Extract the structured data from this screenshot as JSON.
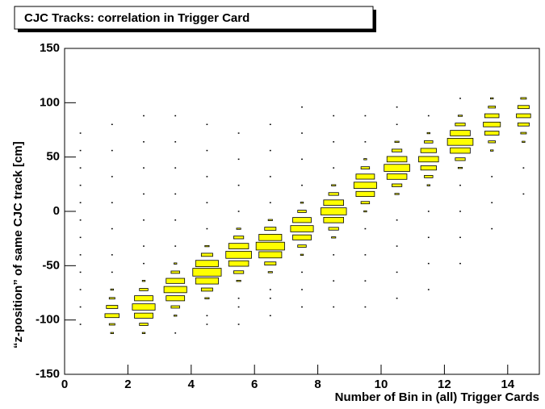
{
  "chart_data": {
    "type": "box",
    "title": "CJC Tracks: correlation in Trigger Card",
    "x_label": "Number of Bin in (all) Trigger Cards",
    "y_label": "“z-position” of same CJC track [cm]",
    "xlim": [
      0,
      15
    ],
    "ylim": [
      -150,
      150
    ],
    "xticks": [
      0,
      2,
      4,
      6,
      8,
      10,
      12,
      14
    ],
    "yticks": [
      -150,
      -100,
      -50,
      0,
      50,
      100,
      150
    ],
    "color": "#ffff00",
    "x": [
      0.5,
      0.5,
      0.5,
      0.5,
      0.5,
      0.5,
      0.5,
      0.5,
      0.5,
      0.5,
      0.5,
      0.5,
      1.5,
      1.5,
      1.5,
      1.5,
      1.5,
      1.5,
      1.5,
      1.5,
      1.5,
      1.5,
      1.5,
      1.5,
      1.5,
      2.5,
      2.5,
      2.5,
      2.5,
      2.5,
      2.5,
      2.5,
      2.5,
      2.5,
      2.5,
      2.5,
      2.5,
      2.5,
      2.5,
      3.5,
      3.5,
      3.5,
      3.5,
      3.5,
      3.5,
      3.5,
      3.5,
      3.5,
      3.5,
      3.5,
      3.5,
      3.5,
      3.5,
      4.5,
      4.5,
      4.5,
      4.5,
      4.5,
      4.5,
      4.5,
      4.5,
      4.5,
      4.5,
      4.5,
      4.5,
      4.5,
      4.5,
      5.5,
      5.5,
      5.5,
      5.5,
      5.5,
      5.5,
      5.5,
      5.5,
      5.5,
      5.5,
      5.5,
      5.5,
      5.5,
      5.5,
      6.5,
      6.5,
      6.5,
      6.5,
      6.5,
      6.5,
      6.5,
      6.5,
      6.5,
      6.5,
      6.5,
      6.5,
      6.5,
      6.5,
      7.5,
      7.5,
      7.5,
      7.5,
      7.5,
      7.5,
      7.5,
      7.5,
      7.5,
      7.5,
      7.5,
      7.5,
      7.5,
      7.5,
      8.5,
      8.5,
      8.5,
      8.5,
      8.5,
      8.5,
      8.5,
      8.5,
      8.5,
      8.5,
      8.5,
      8.5,
      8.5,
      9.5,
      9.5,
      9.5,
      9.5,
      9.5,
      9.5,
      9.5,
      9.5,
      9.5,
      9.5,
      9.5,
      9.5,
      9.5,
      10.5,
      10.5,
      10.5,
      10.5,
      10.5,
      10.5,
      10.5,
      10.5,
      10.5,
      10.5,
      10.5,
      10.5,
      10.5,
      11.5,
      11.5,
      11.5,
      11.5,
      11.5,
      11.5,
      11.5,
      11.5,
      11.5,
      11.5,
      11.5,
      11.5,
      12.5,
      12.5,
      12.5,
      12.5,
      12.5,
      12.5,
      12.5,
      12.5,
      12.5,
      12.5,
      12.5,
      12.5,
      13.5,
      13.5,
      13.5,
      13.5,
      13.5,
      13.5,
      13.5,
      13.5,
      13.5,
      13.5,
      14.5,
      14.5,
      14.5,
      14.5,
      14.5,
      14.5,
      14.5,
      14.5
    ],
    "y": [
      -104,
      -88,
      -72,
      -56,
      -40,
      -24,
      -8,
      8,
      24,
      40,
      56,
      72,
      -112,
      -104,
      -96,
      -88,
      -80,
      -72,
      -56,
      -40,
      -16,
      8,
      32,
      56,
      80,
      -112,
      -104,
      -96,
      -88,
      -80,
      -72,
      -64,
      -48,
      -32,
      -8,
      16,
      40,
      64,
      88,
      -96,
      -88,
      -80,
      -72,
      -64,
      -56,
      -48,
      -112,
      -32,
      -8,
      16,
      40,
      64,
      88,
      -80,
      -72,
      -64,
      -56,
      -48,
      -40,
      -32,
      -104,
      -96,
      -16,
      8,
      32,
      56,
      80,
      -64,
      -56,
      -48,
      -40,
      -32,
      -24,
      -16,
      -104,
      -88,
      -80,
      0,
      24,
      48,
      72,
      -56,
      -48,
      -40,
      -32,
      -24,
      -16,
      -8,
      -96,
      -80,
      -72,
      8,
      32,
      56,
      80,
      -40,
      -32,
      -24,
      -16,
      -8,
      0,
      8,
      -88,
      -72,
      -56,
      24,
      48,
      72,
      96,
      -24,
      -16,
      -8,
      0,
      8,
      16,
      24,
      -88,
      -64,
      -40,
      40,
      64,
      88,
      0,
      8,
      16,
      24,
      32,
      40,
      48,
      -88,
      -64,
      -40,
      -16,
      64,
      88,
      16,
      24,
      32,
      40,
      48,
      56,
      64,
      -80,
      -56,
      -32,
      -8,
      80,
      96,
      24,
      32,
      40,
      48,
      56,
      64,
      72,
      -72,
      -48,
      -24,
      0,
      88,
      40,
      48,
      56,
      64,
      72,
      80,
      88,
      -48,
      -24,
      0,
      24,
      104,
      56,
      64,
      72,
      80,
      88,
      96,
      104,
      -16,
      8,
      32,
      64,
      72,
      80,
      88,
      96,
      104,
      16,
      40
    ],
    "values": [
      1,
      1,
      1,
      1,
      1,
      1,
      1,
      1,
      1,
      1,
      1,
      1,
      2,
      4,
      10,
      8,
      4,
      2,
      1,
      1,
      1,
      1,
      1,
      1,
      1,
      2,
      6,
      13,
      16,
      13,
      6,
      2,
      1,
      1,
      1,
      1,
      1,
      1,
      1,
      2,
      6,
      13,
      16,
      13,
      6,
      2,
      1,
      1,
      1,
      1,
      1,
      1,
      1,
      3,
      8,
      16,
      20,
      16,
      8,
      3,
      1,
      1,
      1,
      1,
      1,
      1,
      1,
      3,
      7,
      14,
      18,
      14,
      7,
      3,
      1,
      1,
      1,
      1,
      1,
      1,
      1,
      3,
      8,
      16,
      20,
      16,
      8,
      3,
      1,
      1,
      1,
      1,
      1,
      1,
      1,
      2,
      6,
      13,
      16,
      13,
      6,
      2,
      1,
      1,
      1,
      1,
      1,
      1,
      1,
      3,
      7,
      14,
      18,
      14,
      7,
      3,
      1,
      1,
      1,
      1,
      1,
      1,
      2,
      6,
      13,
      16,
      13,
      6,
      2,
      1,
      1,
      1,
      1,
      1,
      1,
      3,
      7,
      14,
      18,
      14,
      7,
      3,
      1,
      1,
      1,
      1,
      1,
      1,
      2,
      6,
      11,
      14,
      11,
      6,
      2,
      1,
      1,
      1,
      1,
      1,
      3,
      7,
      14,
      18,
      14,
      7,
      3,
      1,
      1,
      1,
      1,
      1,
      2,
      5,
      10,
      12,
      10,
      5,
      2,
      1,
      1,
      1,
      2,
      4,
      8,
      10,
      8,
      4,
      1,
      1
    ]
  }
}
